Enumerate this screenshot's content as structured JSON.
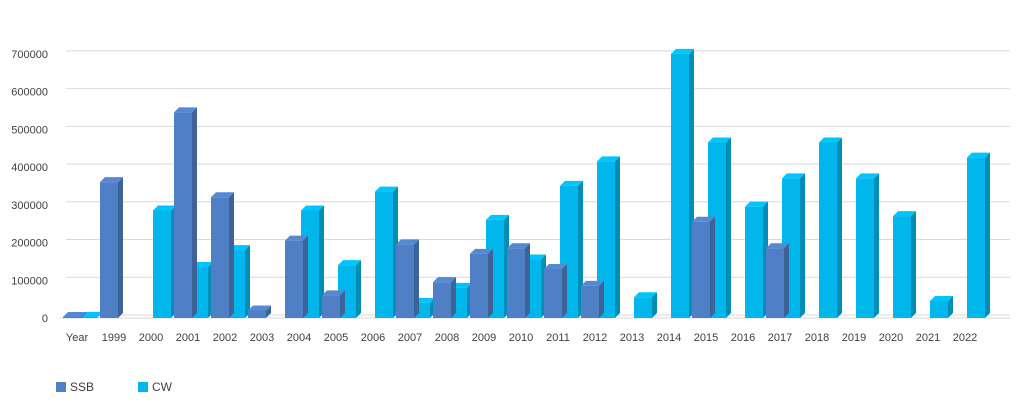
{
  "chart_data": {
    "type": "bar",
    "categories": [
      "Year",
      "1999",
      "2000",
      "2001",
      "2002",
      "2003",
      "2004",
      "2005",
      "2006",
      "2007",
      "2008",
      "2009",
      "2010",
      "2011",
      "2012",
      "2013",
      "2014",
      "2015",
      "2016",
      "2017",
      "2018",
      "2019",
      "2020",
      "2021",
      "2022"
    ],
    "series": [
      {
        "name": "SSB",
        "color": "#4f7fc4",
        "values": [
          0,
          360000,
          null,
          545000,
          320000,
          20000,
          205000,
          60000,
          null,
          195000,
          95000,
          170000,
          185000,
          130000,
          85000,
          null,
          null,
          255000,
          null,
          185000,
          null,
          null,
          null,
          null,
          null
        ]
      },
      {
        "name": "CW",
        "color": "#00b6ea",
        "values": [
          0,
          null,
          285000,
          135000,
          180000,
          null,
          285000,
          140000,
          335000,
          40000,
          80000,
          260000,
          155000,
          350000,
          415000,
          55000,
          700000,
          465000,
          295000,
          370000,
          465000,
          370000,
          270000,
          45000,
          425000
        ]
      }
    ],
    "ylim": [
      0,
      750000
    ],
    "yticks": [
      "0",
      "100000",
      "200000",
      "300000",
      "400000",
      "500000",
      "600000",
      "700000"
    ],
    "grid": true,
    "legend_position": "bottom-left"
  }
}
